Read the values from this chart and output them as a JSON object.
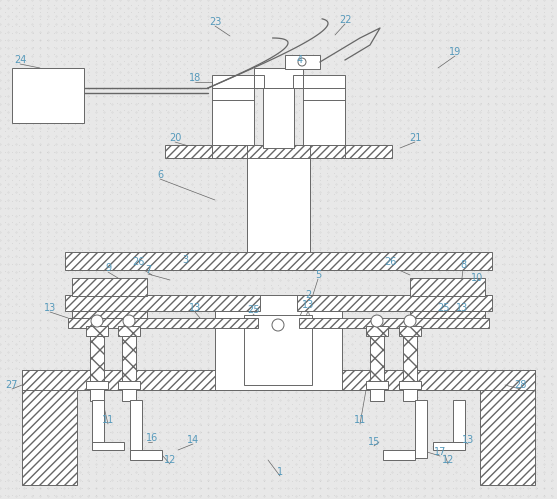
{
  "fig_width": 5.57,
  "fig_height": 4.99,
  "dpi": 100,
  "bg_color": "#e8e8e8",
  "line_color": "#666666",
  "label_color": "#5599bb",
  "label_fontsize": 7,
  "line_width": 0.7,
  "coords": {
    "xlim": [
      0,
      557
    ],
    "ylim": [
      0,
      499
    ]
  }
}
